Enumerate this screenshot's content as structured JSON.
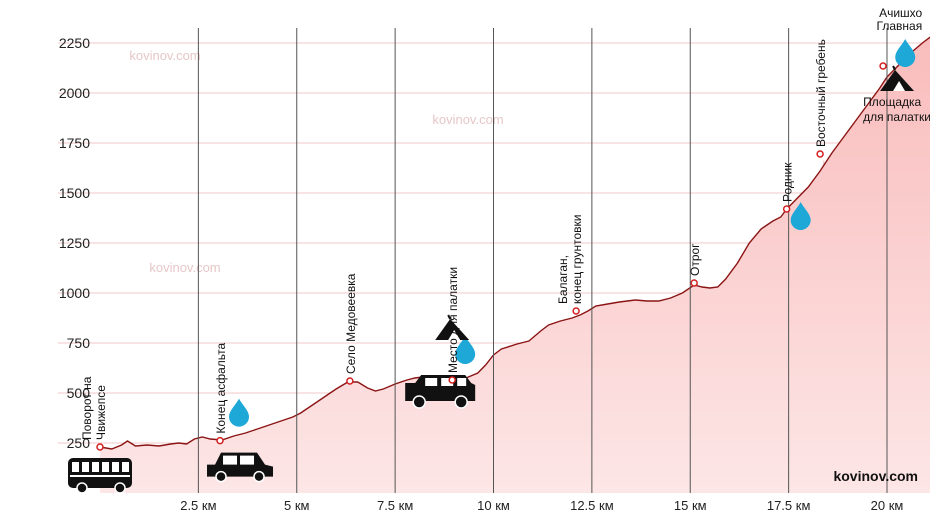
{
  "chart_data": {
    "type": "area",
    "title": "",
    "xlabel": "",
    "ylabel": "",
    "xlim": [
      0,
      21.2
    ],
    "ylim": [
      0,
      2340
    ],
    "x_ticks": [
      {
        "value": 2.5,
        "label": "2.5 км"
      },
      {
        "value": 5,
        "label": "5 км"
      },
      {
        "value": 7.5,
        "label": "7.5 км"
      },
      {
        "value": 10,
        "label": "10 км"
      },
      {
        "value": 12.5,
        "label": "12.5 км"
      },
      {
        "value": 15,
        "label": "15 км"
      },
      {
        "value": 17.5,
        "label": "17.5 км"
      },
      {
        "value": 20,
        "label": "20 км"
      }
    ],
    "y_ticks": [
      {
        "value": 250,
        "label": "250"
      },
      {
        "value": 500,
        "label": "500"
      },
      {
        "value": 750,
        "label": "750"
      },
      {
        "value": 1000,
        "label": "1000"
      },
      {
        "value": 1250,
        "label": "1250"
      },
      {
        "value": 1500,
        "label": "1500"
      },
      {
        "value": 1750,
        "label": "1750"
      },
      {
        "value": 2000,
        "label": "2000"
      },
      {
        "value": 2250,
        "label": "2250"
      }
    ],
    "grid": {
      "horizontal": true,
      "vertical": true
    },
    "series": [
      {
        "points": [
          [
            0,
            230
          ],
          [
            0.3,
            220
          ],
          [
            0.55,
            240
          ],
          [
            0.7,
            260
          ],
          [
            0.9,
            235
          ],
          [
            1.2,
            240
          ],
          [
            1.5,
            235
          ],
          [
            1.8,
            245
          ],
          [
            2.0,
            250
          ],
          [
            2.2,
            245
          ],
          [
            2.4,
            270
          ],
          [
            2.6,
            280
          ],
          [
            2.8,
            270
          ],
          [
            3.1,
            265
          ],
          [
            3.4,
            285
          ],
          [
            3.7,
            300
          ],
          [
            4.0,
            320
          ],
          [
            4.3,
            340
          ],
          [
            4.6,
            360
          ],
          [
            4.9,
            380
          ],
          [
            5.1,
            400
          ],
          [
            5.4,
            440
          ],
          [
            5.7,
            480
          ],
          [
            6.0,
            520
          ],
          [
            6.3,
            555
          ],
          [
            6.55,
            555
          ],
          [
            6.8,
            525
          ],
          [
            7.0,
            510
          ],
          [
            7.2,
            520
          ],
          [
            7.5,
            545
          ],
          [
            7.8,
            565
          ],
          [
            8.0,
            575
          ],
          [
            8.2,
            580
          ],
          [
            8.4,
            575
          ],
          [
            8.6,
            580
          ],
          [
            8.8,
            565
          ],
          [
            9.0,
            565
          ],
          [
            9.3,
            575
          ],
          [
            9.6,
            600
          ],
          [
            9.8,
            640
          ],
          [
            10.0,
            690
          ],
          [
            10.2,
            720
          ],
          [
            10.6,
            745
          ],
          [
            10.9,
            760
          ],
          [
            11.2,
            810
          ],
          [
            11.4,
            840
          ],
          [
            11.7,
            860
          ],
          [
            12.0,
            875
          ],
          [
            12.2,
            890
          ],
          [
            12.4,
            910
          ],
          [
            12.6,
            935
          ],
          [
            12.9,
            945
          ],
          [
            13.2,
            955
          ],
          [
            13.6,
            965
          ],
          [
            13.9,
            960
          ],
          [
            14.2,
            960
          ],
          [
            14.5,
            975
          ],
          [
            14.8,
            1000
          ],
          [
            15.1,
            1040
          ],
          [
            15.3,
            1030
          ],
          [
            15.5,
            1025
          ],
          [
            15.7,
            1030
          ],
          [
            15.9,
            1070
          ],
          [
            16.2,
            1150
          ],
          [
            16.5,
            1250
          ],
          [
            16.8,
            1320
          ],
          [
            17.1,
            1360
          ],
          [
            17.3,
            1380
          ],
          [
            17.45,
            1420
          ],
          [
            17.7,
            1470
          ],
          [
            18.0,
            1530
          ],
          [
            18.3,
            1610
          ],
          [
            18.6,
            1700
          ],
          [
            18.9,
            1780
          ],
          [
            19.2,
            1860
          ],
          [
            19.5,
            1940
          ],
          [
            19.8,
            2020
          ],
          [
            20.0,
            2080
          ],
          [
            20.3,
            2140
          ],
          [
            20.6,
            2200
          ],
          [
            20.9,
            2250
          ],
          [
            21.2,
            2295
          ]
        ]
      }
    ],
    "points_of_interest": [
      {
        "x": 0,
        "y": 230,
        "label_lines": [
          "Поворот на",
          "Чвижепсе"
        ],
        "orientation": "vertical",
        "icons": [
          "bus-icon"
        ]
      },
      {
        "x": 3.05,
        "y": 262,
        "label_lines": [
          "Конец асфальта"
        ],
        "orientation": "vertical",
        "icons": [
          "water-drop-icon",
          "car-icon"
        ]
      },
      {
        "x": 6.35,
        "y": 560,
        "label_lines": [
          "Село Медовеевка"
        ],
        "orientation": "vertical",
        "icons": []
      },
      {
        "x": 8.95,
        "y": 565,
        "label_lines": [
          "Место для палатки"
        ],
        "orientation": "vertical",
        "icons": [
          "water-drop-icon",
          "tent-icon",
          "jeep-icon"
        ]
      },
      {
        "x": 12.1,
        "y": 910,
        "label_lines": [
          "Балаган,",
          "конец грунтовки"
        ],
        "orientation": "vertical",
        "icons": []
      },
      {
        "x": 15.1,
        "y": 1050,
        "label_lines": [
          "Отрог"
        ],
        "orientation": "vertical",
        "icons": []
      },
      {
        "x": 17.45,
        "y": 1420,
        "label_lines": [
          "Родник"
        ],
        "orientation": "vertical",
        "icons": [
          "water-drop-icon"
        ]
      },
      {
        "x": 18.3,
        "y": 1695,
        "label_lines": [
          "Восточный гребень"
        ],
        "orientation": "vertical",
        "icons": []
      },
      {
        "x": 19.9,
        "y": 2135,
        "label_lines": [
          "Площадка",
          "для палатки"
        ],
        "orientation": "horizontal",
        "icons": [
          "tent-icon"
        ]
      },
      {
        "x": 21.2,
        "y": 2330,
        "label_lines": [
          "Ачишхо",
          "Главная"
        ],
        "orientation": "horizontal",
        "icons": [
          "water-drop-icon"
        ]
      }
    ],
    "colors": {
      "fill_top": "#f9bcbc",
      "fill_bottom": "#fde6e6",
      "line": "#8b1414",
      "marker": "#d21f1f",
      "grid_vertical": "#555555",
      "grid_horizontal": "#f0c8c8",
      "water": "#1ea8d8"
    }
  },
  "watermark_text": "kovinov.com",
  "brand": "kovinov.com"
}
